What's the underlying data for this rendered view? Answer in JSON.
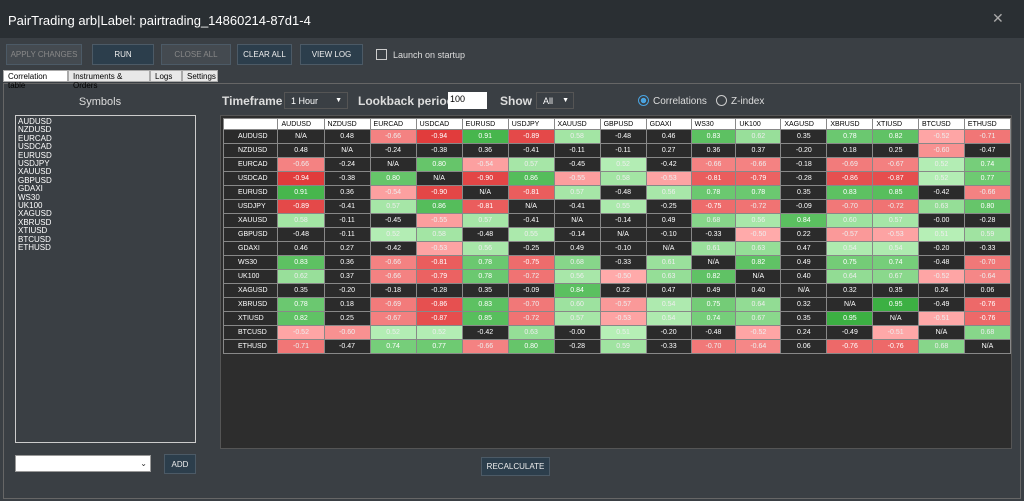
{
  "header": {
    "title": "PairTrading arb|Label: pairtrading_14860214-87d1-4"
  },
  "toolbar": {
    "buttons": [
      "APPLY CHANGES",
      "RUN",
      "CLOSE ALL",
      "CLEAR ALL",
      "VIEW LOG"
    ],
    "checkbox": "Launch on startup"
  },
  "tabs": [
    "Correlation table",
    "Instruments & Orders",
    "Logs",
    "Settings"
  ],
  "symbols": {
    "title": "Symbols",
    "items": [
      "AUDUSD",
      "NZDUSD",
      "EURCAD",
      "USDCAD",
      "EURUSD",
      "USDJPY",
      "XAUUSD",
      "GBPUSD",
      "GDAXI",
      "WS30",
      "UK100",
      "XAGUSD",
      "XBRUSD",
      "XTIUSD",
      "BTCUSD",
      "ETHUSD"
    ],
    "add": "ADD"
  },
  "controls": {
    "timeframe_label": "Timeframe",
    "timeframe": "1 Hour",
    "lookback_label": "Lookback period",
    "lookback": "100",
    "show_label": "Show",
    "show": "All",
    "radios": [
      "Correlations",
      "Z-index"
    ]
  },
  "table": {
    "columns": [
      "AUDUSD",
      "NZDUSD",
      "EURCAD",
      "USDCAD",
      "EURUSD",
      "USDJPY",
      "XAUUSD",
      "GBPUSD",
      "GDAXI",
      "WS30",
      "UK100",
      "XAGUSD",
      "XBRUSD",
      "XTIUSD",
      "BTCUSD",
      "ETHUSD"
    ],
    "rows": [
      {
        "label": "AUDUSD",
        "cells": [
          "N/A",
          "0.48",
          "-0.66",
          "-0.94",
          "0.91",
          "-0.89",
          "0.58",
          "-0.48",
          "0.46",
          "0.83",
          "0.62",
          "0.35",
          "0.78",
          "0.82",
          "-0.52",
          "-0.71"
        ]
      },
      {
        "label": "NZDUSD",
        "cells": [
          "0.48",
          "N/A",
          "-0.24",
          "-0.38",
          "0.36",
          "-0.41",
          "-0.11",
          "-0.11",
          "0.27",
          "0.36",
          "0.37",
          "-0.20",
          "0.18",
          "0.25",
          "-0.60",
          "-0.47"
        ]
      },
      {
        "label": "EURCAD",
        "cells": [
          "-0.66",
          "-0.24",
          "N/A",
          "0.80",
          "-0.54",
          "0.57",
          "-0.45",
          "0.52",
          "-0.42",
          "-0.66",
          "-0.66",
          "-0.18",
          "-0.69",
          "-0.67",
          "0.52",
          "0.74"
        ]
      },
      {
        "label": "USDCAD",
        "cells": [
          "-0.94",
          "-0.38",
          "0.80",
          "N/A",
          "-0.90",
          "0.86",
          "-0.55",
          "0.58",
          "-0.53",
          "-0.81",
          "-0.79",
          "-0.28",
          "-0.86",
          "-0.87",
          "0.52",
          "0.77"
        ]
      },
      {
        "label": "EURUSD",
        "cells": [
          "0.91",
          "0.36",
          "-0.54",
          "-0.90",
          "N/A",
          "-0.81",
          "0.57",
          "-0.48",
          "0.56",
          "0.78",
          "0.78",
          "0.35",
          "0.83",
          "0.85",
          "-0.42",
          "-0.66"
        ]
      },
      {
        "label": "USDJPY",
        "cells": [
          "-0.89",
          "-0.41",
          "0.57",
          "0.86",
          "-0.81",
          "N/A",
          "-0.41",
          "0.55",
          "-0.25",
          "-0.75",
          "-0.72",
          "-0.09",
          "-0.70",
          "-0.72",
          "0.63",
          "0.80"
        ]
      },
      {
        "label": "XAUUSD",
        "cells": [
          "0.58",
          "-0.11",
          "-0.45",
          "-0.55",
          "0.57",
          "-0.41",
          "N/A",
          "-0.14",
          "0.49",
          "0.68",
          "0.56",
          "0.84",
          "0.60",
          "0.57",
          "-0.00",
          "-0.28"
        ]
      },
      {
        "label": "GBPUSD",
        "cells": [
          "-0.48",
          "-0.11",
          "0.52",
          "0.58",
          "-0.48",
          "0.55",
          "-0.14",
          "N/A",
          "-0.10",
          "-0.33",
          "-0.50",
          "0.22",
          "-0.57",
          "-0.53",
          "0.51",
          "0.59"
        ]
      },
      {
        "label": "GDAXI",
        "cells": [
          "0.46",
          "0.27",
          "-0.42",
          "-0.53",
          "0.56",
          "-0.25",
          "0.49",
          "-0.10",
          "N/A",
          "0.61",
          "0.63",
          "0.47",
          "0.54",
          "0.54",
          "-0.20",
          "-0.33"
        ]
      },
      {
        "label": "WS30",
        "cells": [
          "0.83",
          "0.36",
          "-0.66",
          "-0.81",
          "0.78",
          "-0.75",
          "0.68",
          "-0.33",
          "0.61",
          "N/A",
          "0.82",
          "0.49",
          "0.75",
          "0.74",
          "-0.48",
          "-0.70"
        ]
      },
      {
        "label": "UK100",
        "cells": [
          "0.62",
          "0.37",
          "-0.66",
          "-0.79",
          "0.78",
          "-0.72",
          "0.56",
          "-0.50",
          "0.63",
          "0.82",
          "N/A",
          "0.40",
          "0.64",
          "0.67",
          "-0.52",
          "-0.64"
        ]
      },
      {
        "label": "XAGUSD",
        "cells": [
          "0.35",
          "-0.20",
          "-0.18",
          "-0.28",
          "0.35",
          "-0.09",
          "0.84",
          "0.22",
          "0.47",
          "0.49",
          "0.40",
          "N/A",
          "0.32",
          "0.35",
          "0.24",
          "0.06"
        ]
      },
      {
        "label": "XBRUSD",
        "cells": [
          "0.78",
          "0.18",
          "-0.69",
          "-0.86",
          "0.83",
          "-0.70",
          "0.60",
          "-0.57",
          "0.54",
          "0.75",
          "0.64",
          "0.32",
          "N/A",
          "0.95",
          "-0.49",
          "-0.76"
        ]
      },
      {
        "label": "XTIUSD",
        "cells": [
          "0.82",
          "0.25",
          "-0.67",
          "-0.87",
          "0.85",
          "-0.72",
          "0.57",
          "-0.53",
          "0.54",
          "0.74",
          "0.67",
          "0.35",
          "0.95",
          "N/A",
          "-0.51",
          "-0.76"
        ]
      },
      {
        "label": "BTCUSD",
        "cells": [
          "-0.52",
          "-0.60",
          "0.52",
          "0.52",
          "-0.42",
          "0.63",
          "-0.00",
          "0.51",
          "-0.20",
          "-0.48",
          "-0.52",
          "0.24",
          "-0.49",
          "-0.51",
          "N/A",
          "0.68"
        ]
      },
      {
        "label": "ETHUSD",
        "cells": [
          "-0.71",
          "-0.47",
          "0.74",
          "0.77",
          "-0.66",
          "0.80",
          "-0.28",
          "0.59",
          "-0.33",
          "-0.70",
          "-0.64",
          "0.06",
          "-0.76",
          "-0.76",
          "0.68",
          "N/A"
        ]
      }
    ]
  },
  "recalculate": "RECALCULATE"
}
